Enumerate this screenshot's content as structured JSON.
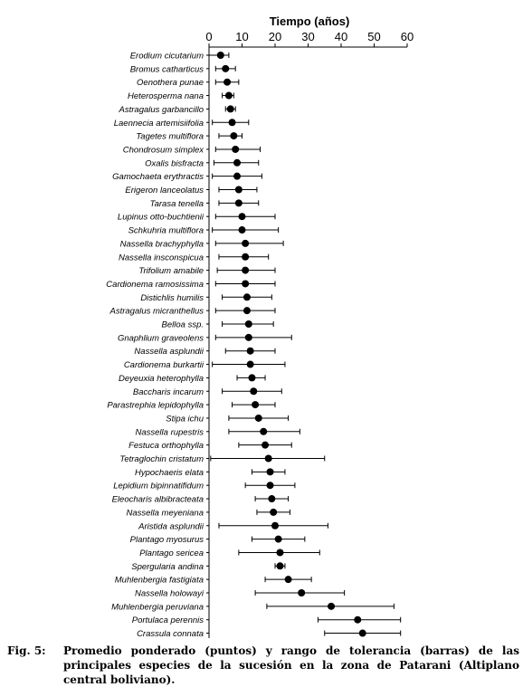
{
  "chart_data": {
    "type": "scatter",
    "xlabel": "Tiempo (años)",
    "xlim": [
      0,
      60
    ],
    "xticks": [
      0,
      10,
      20,
      30,
      40,
      50,
      60
    ],
    "axis_position": "top",
    "grid": false,
    "species": [
      {
        "name": "Erodium cicutarium",
        "mean": 3.5,
        "min": 0,
        "max": 6
      },
      {
        "name": "Bromus catharticus",
        "mean": 5,
        "min": 2,
        "max": 8
      },
      {
        "name": "Oenothera punae",
        "mean": 5.5,
        "min": 2,
        "max": 9
      },
      {
        "name": "Heterosperma nana",
        "mean": 6,
        "min": 4,
        "max": 7.5
      },
      {
        "name": "Astragalus garbancillo",
        "mean": 6.5,
        "min": 5,
        "max": 8
      },
      {
        "name": "Laennecia artemisiifolia",
        "mean": 7,
        "min": 1,
        "max": 12
      },
      {
        "name": "Tagetes multiflora",
        "mean": 7.5,
        "min": 3,
        "max": 10
      },
      {
        "name": "Chondrosum simplex",
        "mean": 8,
        "min": 2,
        "max": 15.5
      },
      {
        "name": "Oxalis bisfracta",
        "mean": 8.5,
        "min": 1.5,
        "max": 15
      },
      {
        "name": "Gamochaeta erythractis",
        "mean": 8.5,
        "min": 1,
        "max": 16
      },
      {
        "name": "Erigeron lanceolatus",
        "mean": 9,
        "min": 3,
        "max": 14.5
      },
      {
        "name": "Tarasa tenella",
        "mean": 9,
        "min": 3,
        "max": 15
      },
      {
        "name": "Lupinus otto-buchtienii",
        "mean": 10,
        "min": 2,
        "max": 20
      },
      {
        "name": "Schkuhria multiflora",
        "mean": 10,
        "min": 1,
        "max": 21
      },
      {
        "name": "Nassella brachyphylla",
        "mean": 11,
        "min": 2,
        "max": 22.5
      },
      {
        "name": "Nassella insconspicua",
        "mean": 11,
        "min": 3,
        "max": 18
      },
      {
        "name": "Trifolium amabile",
        "mean": 11,
        "min": 2.5,
        "max": 20
      },
      {
        "name": "Cardionema ramosissima",
        "mean": 11,
        "min": 2,
        "max": 20
      },
      {
        "name": "Distichlis humilis",
        "mean": 11.5,
        "min": 4,
        "max": 19
      },
      {
        "name": "Astragalus micranthellus",
        "mean": 11.5,
        "min": 2,
        "max": 20
      },
      {
        "name": "Belloa ssp.",
        "mean": 12,
        "min": 4,
        "max": 19.5
      },
      {
        "name": "Gnaphlium graveolens",
        "mean": 12,
        "min": 2,
        "max": 25
      },
      {
        "name": "Nassella asplundii",
        "mean": 12.5,
        "min": 5,
        "max": 20
      },
      {
        "name": "Cardionema burkartii",
        "mean": 12.5,
        "min": 1,
        "max": 23
      },
      {
        "name": "Deyeuxia heterophylla",
        "mean": 13,
        "min": 8.5,
        "max": 17
      },
      {
        "name": "Baccharis incarum",
        "mean": 13.5,
        "min": 4,
        "max": 22
      },
      {
        "name": "Parastrephia lepidophylla",
        "mean": 14,
        "min": 7,
        "max": 20
      },
      {
        "name": "Stipa ichu",
        "mean": 15,
        "min": 6,
        "max": 24
      },
      {
        "name": "Nassella rupestris",
        "mean": 16.5,
        "min": 6,
        "max": 27.5
      },
      {
        "name": "Festuca orthophylla",
        "mean": 17,
        "min": 9,
        "max": 25
      },
      {
        "name": "Tetraglochin cristatum",
        "mean": 18,
        "min": 0.5,
        "max": 35
      },
      {
        "name": "Hypochaeris elata",
        "mean": 18.5,
        "min": 13,
        "max": 23
      },
      {
        "name": "Lepidium bipinnatifidum",
        "mean": 18.5,
        "min": 11,
        "max": 26
      },
      {
        "name": "Eleocharis albibracteata",
        "mean": 19,
        "min": 14,
        "max": 24
      },
      {
        "name": "Nassella meyeniana",
        "mean": 19.5,
        "min": 14.5,
        "max": 24.5
      },
      {
        "name": "Aristida asplundii",
        "mean": 20,
        "min": 3,
        "max": 36
      },
      {
        "name": "Plantago myosurus",
        "mean": 21,
        "min": 13,
        "max": 29
      },
      {
        "name": "Plantago sericea",
        "mean": 21.5,
        "min": 9,
        "max": 33.5
      },
      {
        "name": "Spergularia andina",
        "mean": 21.5,
        "min": 20,
        "max": 23
      },
      {
        "name": "Muhlenbergia fastigiata",
        "mean": 24,
        "min": 17,
        "max": 31
      },
      {
        "name": "Nassella holowayi",
        "mean": 28,
        "min": 14,
        "max": 41
      },
      {
        "name": "Muhlenbergia peruviana",
        "mean": 37,
        "min": 17.5,
        "max": 56
      },
      {
        "name": "Portulaca perennis",
        "mean": 45,
        "min": 33,
        "max": 58
      },
      {
        "name": "Crassula connata",
        "mean": 46.5,
        "min": 35,
        "max": 58
      }
    ]
  },
  "caption": {
    "label": "Fig. 5:",
    "text": "Promedio ponderado (puntos) y rango de tolerancia (barras) de las principales especies de la sucesión en la zona de Patarani (Altiplano central boliviano)."
  }
}
